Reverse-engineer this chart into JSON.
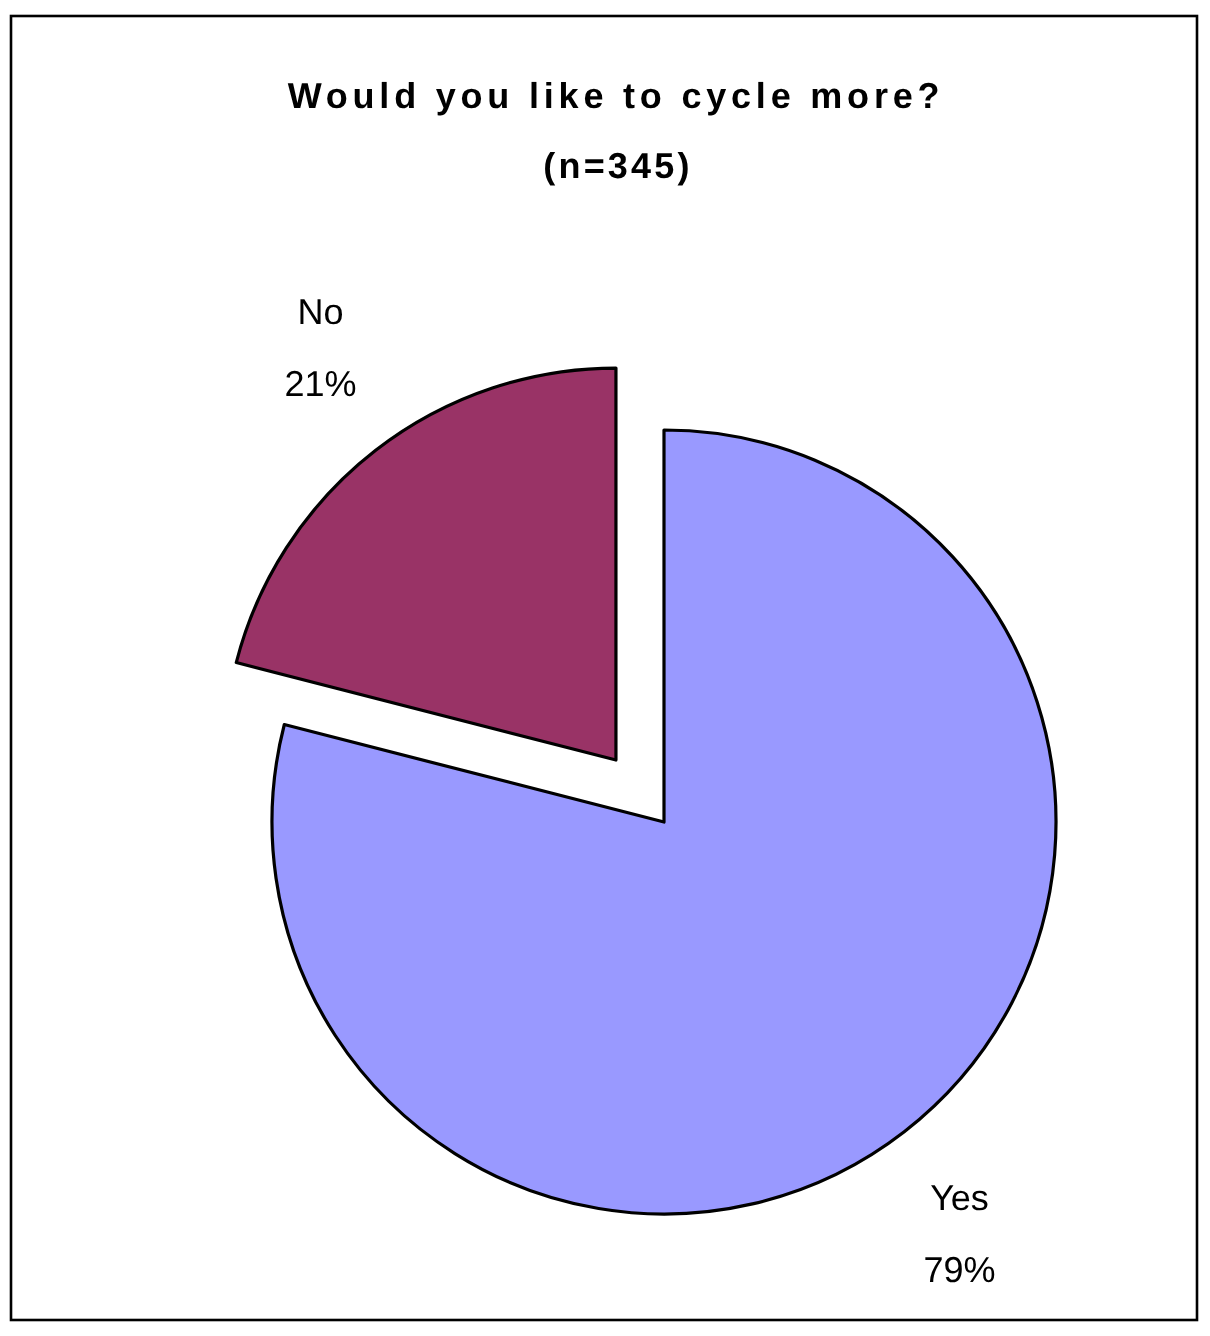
{
  "chart_data": {
    "type": "pie",
    "title": "Would you like to cycle more?",
    "subtitle": "(n=345)",
    "categories": [
      "Yes",
      "No"
    ],
    "values": [
      79,
      21
    ],
    "value_labels": [
      "79%",
      "21%"
    ],
    "colors": [
      "#9999ff",
      "#993366"
    ]
  }
}
